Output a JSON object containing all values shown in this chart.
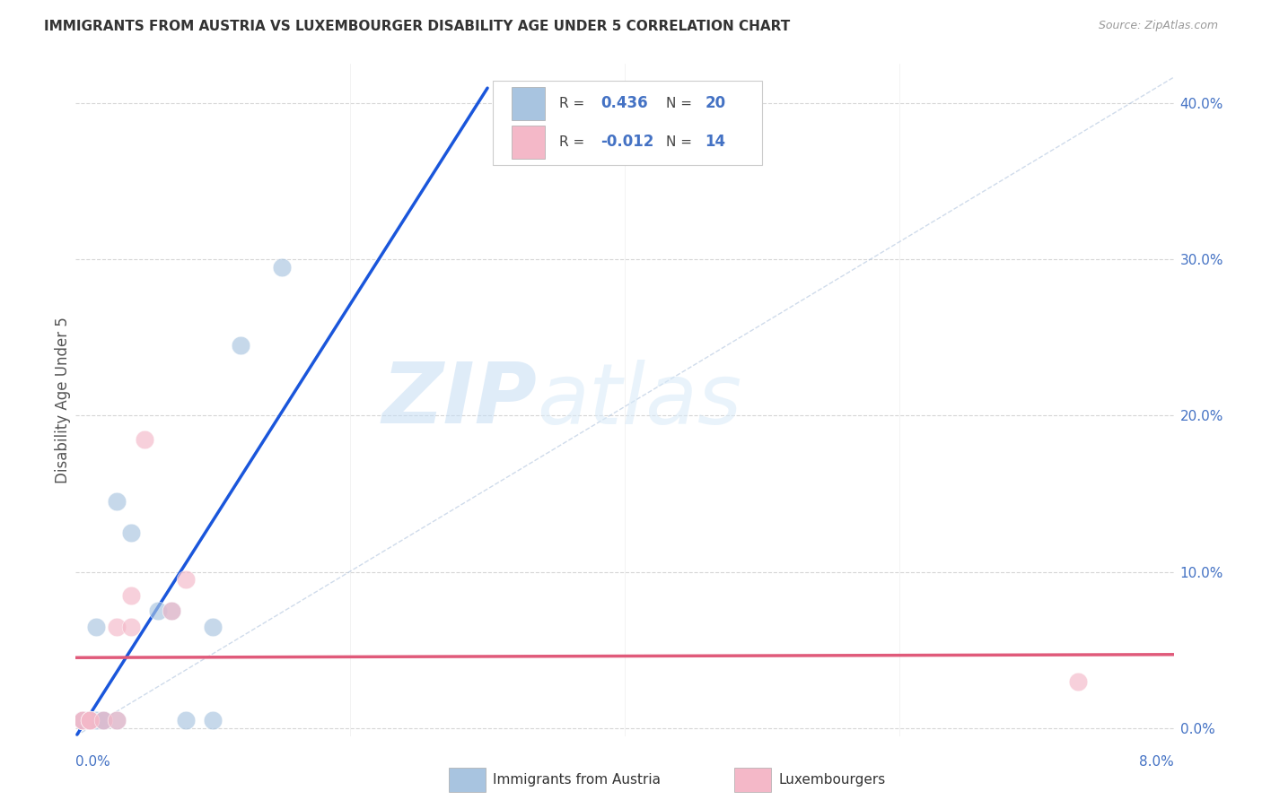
{
  "title": "IMMIGRANTS FROM AUSTRIA VS LUXEMBOURGER DISABILITY AGE UNDER 5 CORRELATION CHART",
  "source": "Source: ZipAtlas.com",
  "ylabel": "Disability Age Under 5",
  "watermark_zip": "ZIP",
  "watermark_atlas": "atlas",
  "legend_austria_R": "0.436",
  "legend_austria_N": "20",
  "legend_lux_R": "-0.012",
  "legend_lux_N": "14",
  "legend_label_austria": "Immigrants from Austria",
  "legend_label_lux": "Luxembourgers",
  "austria_color": "#a8c4e0",
  "austria_line_color": "#1a56db",
  "lux_color": "#f4b8c8",
  "lux_line_color": "#e05a7a",
  "scatter_alpha": 0.65,
  "austria_x": [
    0.0005,
    0.0005,
    0.001,
    0.001,
    0.001,
    0.0015,
    0.0015,
    0.002,
    0.002,
    0.002,
    0.003,
    0.003,
    0.004,
    0.006,
    0.007,
    0.008,
    0.01,
    0.01,
    0.012,
    0.015
  ],
  "austria_y": [
    0.005,
    0.005,
    0.005,
    0.005,
    0.005,
    0.005,
    0.065,
    0.005,
    0.005,
    0.005,
    0.005,
    0.145,
    0.125,
    0.075,
    0.075,
    0.005,
    0.065,
    0.005,
    0.245,
    0.295
  ],
  "lux_x": [
    0.0005,
    0.0005,
    0.001,
    0.001,
    0.001,
    0.002,
    0.003,
    0.003,
    0.004,
    0.004,
    0.005,
    0.007,
    0.008,
    0.073
  ],
  "lux_y": [
    0.005,
    0.005,
    0.005,
    0.005,
    0.005,
    0.005,
    0.065,
    0.005,
    0.065,
    0.085,
    0.185,
    0.075,
    0.095,
    0.03
  ],
  "xmin": 0.0,
  "xmax": 0.08,
  "ymin": -0.005,
  "ymax": 0.425,
  "yticks": [
    0.0,
    0.1,
    0.2,
    0.3,
    0.4
  ],
  "yticklabels": [
    "0.0%",
    "10.0%",
    "20.0%",
    "30.0%",
    "40.0%"
  ],
  "ref_line_color": "#b0c4de",
  "grid_color": "#cccccc"
}
